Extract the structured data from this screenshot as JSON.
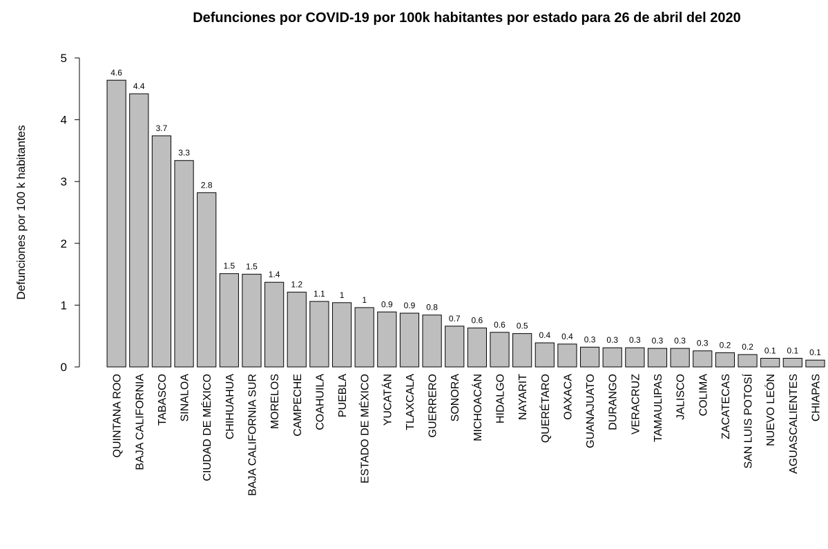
{
  "chart_data": {
    "type": "bar",
    "title": "Defunciones por COVID-19 por 100k habitantes por estado para  26 de abril del 2020",
    "y_label": "Defunciones por 100 k habitantes",
    "categories": [
      "QUINTANA ROO",
      "BAJA CALIFORNIA",
      "TABASCO",
      "SINALOA",
      "CIUDAD DE MÉXICO",
      "CHIHUAHUA",
      "BAJA CALIFORNIA SUR",
      "MORELOS",
      "CAMPECHE",
      "COAHUILA",
      "PUEBLA",
      "ESTADO DE MÉXICO",
      "YUCATÁN",
      "TLAXCALA",
      "GUERRERO",
      "SONORA",
      "MICHOACÁN",
      "HIDALGO",
      "NAYARIT",
      "QUERÉTARO",
      "OAXACA",
      "GUANAJUATO",
      "DURANGO",
      "VERACRUZ",
      "TAMAULIPAS",
      "JALISCO",
      "COLIMA",
      "ZACATECAS",
      "SAN LUIS POTOSÍ",
      "NUEVO LEÓN",
      "AGUASCALIENTES",
      "CHIAPAS"
    ],
    "values": [
      4.64,
      4.42,
      3.74,
      3.34,
      2.82,
      1.51,
      1.5,
      1.37,
      1.21,
      1.06,
      1.04,
      0.96,
      0.89,
      0.87,
      0.84,
      0.66,
      0.63,
      0.56,
      0.54,
      0.39,
      0.37,
      0.32,
      0.31,
      0.31,
      0.3,
      0.3,
      0.26,
      0.23,
      0.2,
      0.14,
      0.14,
      0.11
    ],
    "value_labels": [
      "4.6",
      "4.4",
      "3.7",
      "3.3",
      "2.8",
      "1.5",
      "1.5",
      "1.4",
      "1.2",
      "1.1",
      "1",
      "1",
      "0.9",
      "0.9",
      "0.8",
      "0.7",
      "0.6",
      "0.6",
      "0.5",
      "0.4",
      "0.4",
      "0.3",
      "0.3",
      "0.3",
      "0.3",
      "0.3",
      "0.3",
      "0.2",
      "0.2",
      "0.1",
      "0.1",
      "0.1"
    ],
    "color": "#bebebe",
    "ylim": [
      0,
      5
    ],
    "yticks": [
      0,
      1,
      2,
      3,
      4,
      5
    ]
  }
}
